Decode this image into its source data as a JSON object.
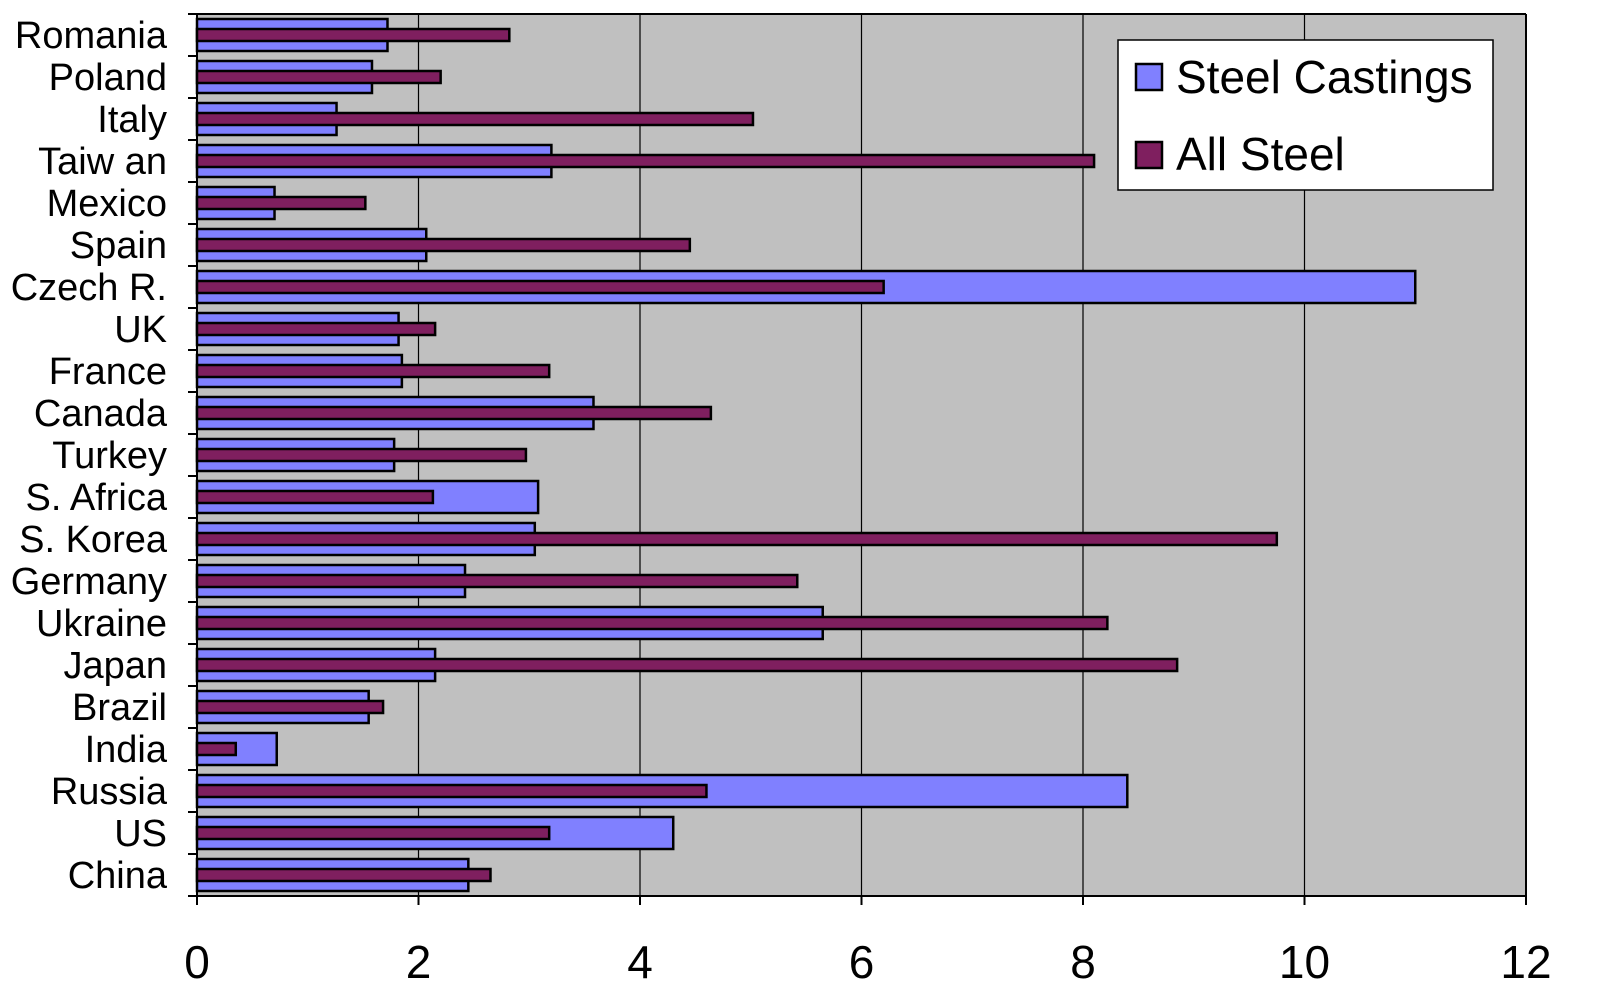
{
  "chart_data": {
    "type": "bar",
    "orientation": "horizontal",
    "categories": [
      "China",
      "US",
      "Russia",
      "India",
      "Brazil",
      "Japan",
      "Ukraine",
      "Germany",
      "S. Korea",
      "S. Africa",
      "Turkey",
      "Canada",
      "France",
      "UK",
      "Czech R.",
      "Spain",
      "Mexico",
      "Taiw an",
      "Italy",
      "Poland",
      "Romania"
    ],
    "series": [
      {
        "name": "Steel Castings",
        "values": [
          2.45,
          4.3,
          8.4,
          0.72,
          1.55,
          2.15,
          5.65,
          2.42,
          3.05,
          3.08,
          1.78,
          3.58,
          1.85,
          1.82,
          11.0,
          2.07,
          0.7,
          3.2,
          1.26,
          1.58,
          1.72
        ]
      },
      {
        "name": "All Steel",
        "values": [
          2.65,
          3.18,
          4.6,
          0.35,
          1.68,
          8.85,
          8.22,
          5.42,
          9.75,
          2.13,
          2.97,
          4.64,
          3.18,
          2.15,
          6.2,
          4.45,
          1.52,
          8.1,
          5.02,
          2.2,
          2.82
        ]
      }
    ],
    "xlim": [
      0,
      12
    ],
    "xticks": [
      "0",
      "2",
      "4",
      "6",
      "8",
      "10",
      "12"
    ],
    "grid": true,
    "legend_position": "top-right",
    "colors": {
      "steel_castings": "#8080ff",
      "all_steel": "#7f1f5f",
      "plot_background": "#c0c0c0",
      "gridline": "#000000"
    }
  }
}
